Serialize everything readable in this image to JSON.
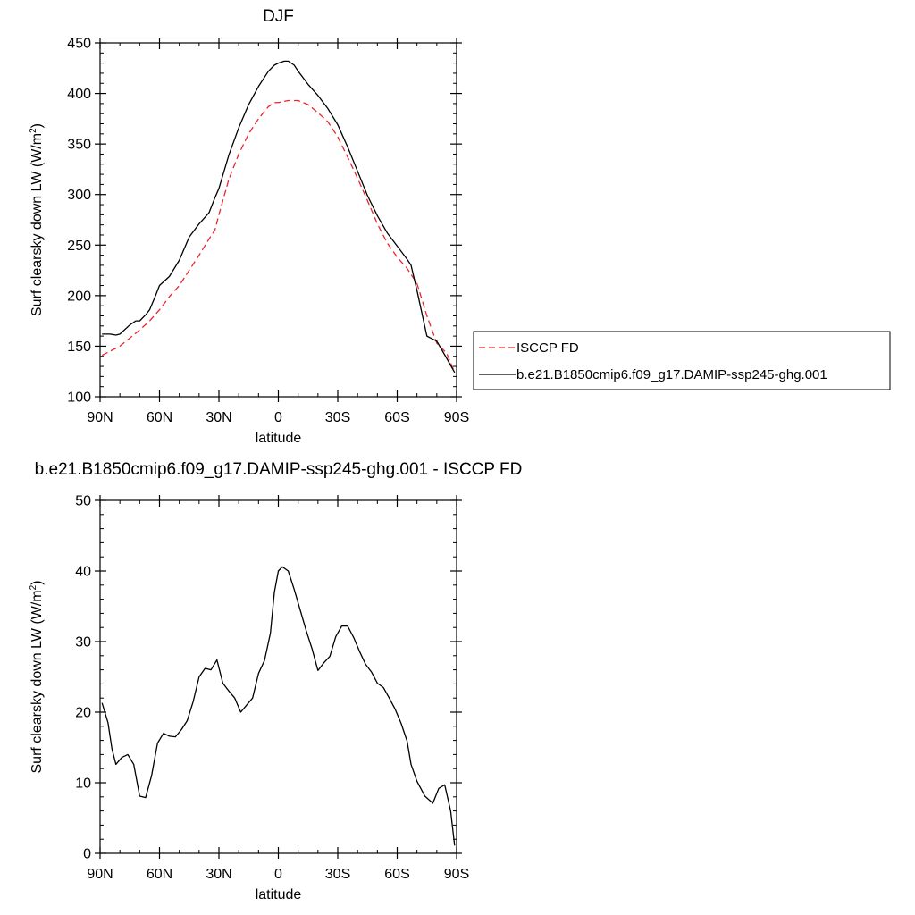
{
  "chart_data": [
    {
      "type": "line",
      "title": "DJF",
      "xlabel": "latitude",
      "ylabel": "Surf clearsky down LW (W/m",
      "ylabel_sup": "2",
      "ylabel_close": ")",
      "xlim": [
        90,
        -90
      ],
      "ylim": [
        100,
        450
      ],
      "xticks": [
        90,
        60,
        30,
        0,
        -30,
        -60,
        -90
      ],
      "xtick_labels": [
        "90N",
        "60N",
        "30N",
        "0",
        "30S",
        "60S",
        "90S"
      ],
      "yticks": [
        100,
        150,
        200,
        250,
        300,
        350,
        400,
        450
      ],
      "ytick_labels": [
        "100",
        "150",
        "200",
        "250",
        "300",
        "350",
        "400",
        "450"
      ],
      "legend_position": "right",
      "series": [
        {
          "name": "ISCCP FD",
          "color": "#e8262e",
          "dash": "dashed",
          "x": [
            89,
            85,
            80,
            75,
            70,
            65,
            60,
            55,
            50,
            45,
            40,
            35,
            32,
            30,
            25,
            20,
            15,
            10,
            5,
            2,
            0,
            -5,
            -10,
            -15,
            -20,
            -25,
            -30,
            -35,
            -40,
            -45,
            -50,
            -55,
            -60,
            -65,
            -70,
            -75,
            -80,
            -85,
            -89
          ],
          "y": [
            141,
            145,
            150,
            158,
            166,
            175,
            186,
            199,
            210,
            225,
            240,
            256,
            265,
            280,
            315,
            340,
            360,
            375,
            387,
            391,
            391,
            393,
            393,
            389,
            381,
            372,
            357,
            337,
            316,
            294,
            271,
            252,
            238,
            227,
            212,
            180,
            153,
            143,
            124
          ]
        },
        {
          "name": "b.e21.B1850cmip6.f09_g17.DAMIP-ssp245-ghg.001",
          "color": "#000000",
          "dash": "solid",
          "x": [
            89,
            85,
            82,
            80,
            75,
            72,
            70,
            67,
            65,
            62,
            60,
            55,
            50,
            45,
            40,
            35,
            32,
            30,
            25,
            20,
            15,
            10,
            5,
            2,
            0,
            -3,
            -5,
            -8,
            -10,
            -15,
            -20,
            -25,
            -30,
            -35,
            -40,
            -45,
            -50,
            -55,
            -60,
            -65,
            -67,
            -70,
            -75,
            -80,
            -85,
            -89
          ],
          "y": [
            162,
            162,
            161,
            162,
            171,
            175,
            175,
            181,
            186,
            200,
            210,
            219,
            235,
            258,
            271,
            282,
            297,
            306,
            339,
            366,
            389,
            407,
            422,
            428,
            430,
            432,
            432,
            428,
            422,
            409,
            398,
            385,
            369,
            347,
            323,
            299,
            279,
            262,
            249,
            236,
            230,
            205,
            160,
            155,
            138,
            124
          ]
        }
      ]
    },
    {
      "type": "line",
      "title": "b.e21.B1850cmip6.f09_g17.DAMIP-ssp245-ghg.001 - ISCCP FD",
      "xlabel": "latitude",
      "ylabel": "Surf clearsky down LW (W/m",
      "ylabel_sup": "2",
      "ylabel_close": ")",
      "xlim": [
        90,
        -90
      ],
      "ylim": [
        0,
        50
      ],
      "xticks": [
        90,
        60,
        30,
        0,
        -30,
        -60,
        -90
      ],
      "xtick_labels": [
        "90N",
        "60N",
        "30N",
        "0",
        "30S",
        "60S",
        "90S"
      ],
      "yticks": [
        0,
        10,
        20,
        30,
        40,
        50
      ],
      "ytick_labels": [
        "0",
        "10",
        "20",
        "30",
        "40",
        "50"
      ],
      "series": [
        {
          "color": "#000000",
          "dash": "solid",
          "x": [
            89,
            86,
            84,
            82,
            79,
            76,
            73,
            70,
            67,
            64,
            61,
            58,
            55,
            52,
            49,
            46,
            43,
            40,
            37,
            34,
            31,
            28,
            25,
            22,
            19,
            16,
            13,
            10,
            7,
            4,
            2,
            0,
            -2,
            -5,
            -8,
            -11,
            -14,
            -17,
            -20,
            -23,
            -26,
            -29,
            -32,
            -35,
            -38,
            -41,
            -44,
            -47,
            -50,
            -53,
            -56,
            -59,
            -62,
            -65,
            -67,
            -70,
            -74,
            -78,
            -81,
            -84,
            -87,
            -89
          ],
          "y": [
            21.3,
            18.5,
            14.8,
            12.6,
            13.6,
            14.0,
            12.6,
            8.1,
            7.9,
            11.0,
            15.6,
            17.0,
            16.6,
            16.5,
            17.5,
            18.8,
            21.5,
            25.0,
            26.2,
            26.0,
            27.4,
            24.1,
            23.0,
            22.0,
            20.0,
            21.0,
            22.0,
            25.5,
            27.3,
            31.2,
            37.0,
            40.0,
            40.6,
            40.0,
            37.4,
            34.5,
            31.6,
            29.0,
            25.9,
            27.0,
            27.9,
            30.7,
            32.2,
            32.2,
            30.6,
            28.6,
            26.8,
            25.7,
            24.1,
            23.5,
            22.0,
            20.4,
            18.4,
            15.9,
            12.6,
            10.2,
            8.1,
            7.1,
            9.2,
            9.7,
            6.0,
            1.1
          ]
        }
      ]
    }
  ]
}
